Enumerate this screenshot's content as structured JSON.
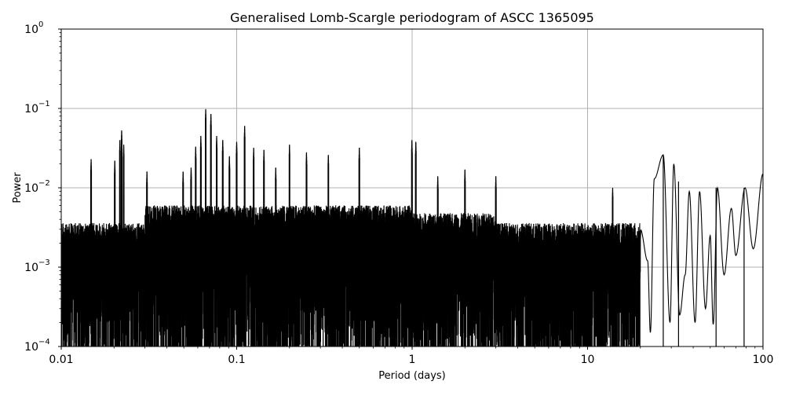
{
  "chart_data": {
    "type": "line",
    "title": "Generalised Lomb-Scargle periodogram of ASCC 1365095",
    "xlabel": "Period (days)",
    "ylabel": "Power",
    "x_scale": "log",
    "y_scale": "log",
    "xlim": [
      0.01,
      100
    ],
    "ylim": [
      0.0001,
      1
    ],
    "grid": true,
    "line_color": "#000000",
    "grid_color": "#b0b0b0",
    "x_ticks": [
      {
        "value": 0.01,
        "label": "0.01"
      },
      {
        "value": 0.1,
        "label": "0.1"
      },
      {
        "value": 1,
        "label": "1"
      },
      {
        "value": 10,
        "label": "10"
      },
      {
        "value": 100,
        "label": "100"
      }
    ],
    "y_ticks": [
      {
        "value": 0.0001,
        "base": "10",
        "exp": "−4"
      },
      {
        "value": 0.001,
        "base": "10",
        "exp": "−3"
      },
      {
        "value": 0.01,
        "base": "10",
        "exp": "−2"
      },
      {
        "value": 0.1,
        "base": "10",
        "exp": "−1"
      },
      {
        "value": 1,
        "base": "10",
        "exp": "0"
      }
    ],
    "peaks": [
      {
        "period": 0.0148,
        "power": 0.023
      },
      {
        "period": 0.0202,
        "power": 0.022
      },
      {
        "period": 0.0216,
        "power": 0.04
      },
      {
        "period": 0.0221,
        "power": 0.053
      },
      {
        "period": 0.0227,
        "power": 0.035
      },
      {
        "period": 0.0308,
        "power": 0.016
      },
      {
        "period": 0.0495,
        "power": 0.016
      },
      {
        "period": 0.055,
        "power": 0.018
      },
      {
        "period": 0.0584,
        "power": 0.033
      },
      {
        "period": 0.0625,
        "power": 0.045
      },
      {
        "period": 0.0666,
        "power": 0.098
      },
      {
        "period": 0.0713,
        "power": 0.085
      },
      {
        "period": 0.0769,
        "power": 0.045
      },
      {
        "period": 0.0833,
        "power": 0.04
      },
      {
        "period": 0.0909,
        "power": 0.025
      },
      {
        "period": 0.1,
        "power": 0.038
      },
      {
        "period": 0.111,
        "power": 0.06
      },
      {
        "period": 0.125,
        "power": 0.032
      },
      {
        "period": 0.143,
        "power": 0.03
      },
      {
        "period": 0.167,
        "power": 0.018
      },
      {
        "period": 0.2,
        "power": 0.035
      },
      {
        "period": 0.25,
        "power": 0.028
      },
      {
        "period": 0.333,
        "power": 0.026
      },
      {
        "period": 0.5,
        "power": 0.032
      },
      {
        "period": 0.997,
        "power": 0.04
      },
      {
        "period": 1.05,
        "power": 0.038
      },
      {
        "period": 1.4,
        "power": 0.014
      },
      {
        "period": 2.0,
        "power": 0.017
      },
      {
        "period": 3.0,
        "power": 0.014
      },
      {
        "period": 13.9,
        "power": 0.01
      },
      {
        "period": 27.0,
        "power": 0.026
      },
      {
        "period": 33.0,
        "power": 0.012
      },
      {
        "period": 54.0,
        "power": 0.01
      },
      {
        "period": 78.0,
        "power": 0.01
      },
      {
        "period": 100.0,
        "power": 0.015
      }
    ],
    "low_tail_envelope": [
      {
        "period": 20.0,
        "power": 0.003
      },
      {
        "period": 22.0,
        "power": 0.0012
      },
      {
        "period": 22.8,
        "power": 0.00015
      },
      {
        "period": 24.0,
        "power": 0.013
      },
      {
        "period": 27.0,
        "power": 0.026
      },
      {
        "period": 29.5,
        "power": 0.0002
      },
      {
        "period": 31.0,
        "power": 0.02
      },
      {
        "period": 33.5,
        "power": 0.00025
      },
      {
        "period": 36.0,
        "power": 0.0008
      },
      {
        "period": 38.0,
        "power": 0.009
      },
      {
        "period": 41.0,
        "power": 0.0002
      },
      {
        "period": 43.5,
        "power": 0.009
      },
      {
        "period": 47.0,
        "power": 0.0003
      },
      {
        "period": 50.0,
        "power": 0.0025
      },
      {
        "period": 52.0,
        "power": 0.00019
      },
      {
        "period": 55.0,
        "power": 0.01
      },
      {
        "period": 60.0,
        "power": 0.0008
      },
      {
        "period": 66.0,
        "power": 0.0055
      },
      {
        "period": 70.0,
        "power": 0.0014
      },
      {
        "period": 79.0,
        "power": 0.01
      },
      {
        "period": 88.0,
        "power": 0.0017
      },
      {
        "period": 100.0,
        "power": 0.015
      }
    ]
  }
}
